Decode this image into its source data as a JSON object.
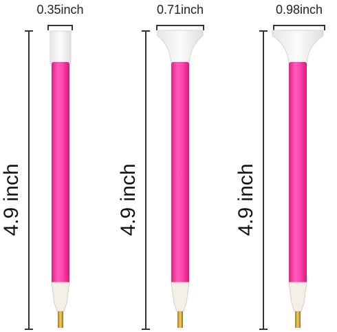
{
  "pens": [
    {
      "width": "0.35inch",
      "length": "4.9 inch"
    },
    {
      "width": "0.71inch",
      "length": "4.9 inch"
    },
    {
      "width": "0.98inch",
      "length": "4.9 inch"
    }
  ]
}
